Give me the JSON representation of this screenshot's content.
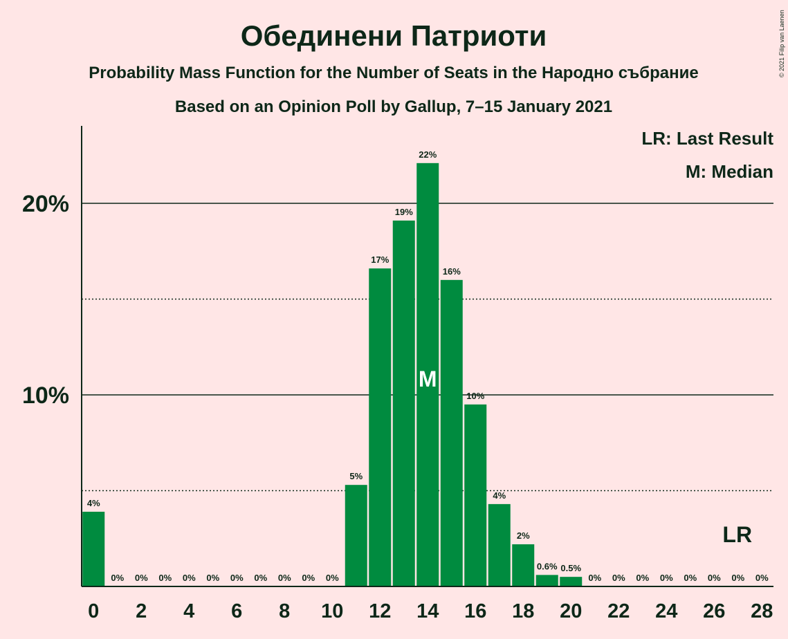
{
  "title": "Обединени Патриоти",
  "subtitle": "Probability Mass Function for the Number of Seats in the Народно събрание",
  "poll_line": "Based on an Opinion Poll by Gallup, 7–15 January 2021",
  "copyright": "© 2021 Filip van Laenen",
  "legend": {
    "last_result": "LR: Last Result",
    "median": "M: Median"
  },
  "markers": {
    "median_letter": "M",
    "last_result_letter": "LR"
  },
  "colors": {
    "bar": "#008B3F",
    "background": "#FFE6E6",
    "text": "#0D2718"
  },
  "chart_data": {
    "type": "bar",
    "x": [
      0,
      1,
      2,
      3,
      4,
      5,
      6,
      7,
      8,
      9,
      10,
      11,
      12,
      13,
      14,
      15,
      16,
      17,
      18,
      19,
      20,
      21,
      22,
      23,
      24,
      25,
      26,
      27,
      28
    ],
    "values": [
      3.9,
      0,
      0,
      0,
      0,
      0,
      0,
      0,
      0,
      0,
      0,
      5.3,
      16.6,
      19.1,
      22.1,
      16.0,
      9.5,
      4.3,
      2.2,
      0.6,
      0.5,
      0,
      0,
      0,
      0,
      0,
      0,
      0,
      0
    ],
    "labels": [
      "4%",
      "0%",
      "0%",
      "0%",
      "0%",
      "0%",
      "0%",
      "0%",
      "0%",
      "0%",
      "0%",
      "5%",
      "17%",
      "19%",
      "22%",
      "16%",
      "10%",
      "4%",
      "2%",
      "0.6%",
      "0.5%",
      "0%",
      "0%",
      "0%",
      "0%",
      "0%",
      "0%",
      "0%",
      "0%"
    ],
    "x_tick_labels": [
      "0",
      "2",
      "4",
      "6",
      "8",
      "10",
      "12",
      "14",
      "16",
      "18",
      "20",
      "22",
      "24",
      "26",
      "28"
    ],
    "x_tick_values": [
      0,
      2,
      4,
      6,
      8,
      10,
      12,
      14,
      16,
      18,
      20,
      22,
      24,
      26,
      28
    ],
    "y_tick_labels": [
      "10%",
      "20%"
    ],
    "y_tick_values": [
      10,
      20
    ],
    "dotted_gridlines": [
      5,
      15
    ],
    "solid_gridlines": [
      10,
      20
    ],
    "ylim": [
      0,
      24
    ],
    "median_seat": 14,
    "last_result_seat": 27
  }
}
